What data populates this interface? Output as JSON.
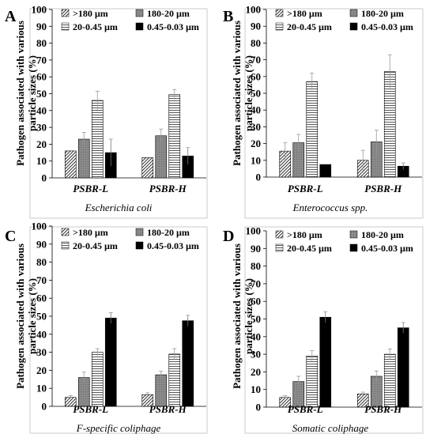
{
  "chart_data": [
    {
      "type": "bar",
      "panel_label": "A",
      "title": "Escherichia coli",
      "ylabel": "Pathogen associated with various particle sizes (%)",
      "ylim": [
        0,
        100
      ],
      "yticks": [
        "0",
        "10",
        "20",
        "30",
        "40",
        "50",
        "60",
        "70",
        "80",
        "90",
        "100"
      ],
      "categories": [
        "PSBR-L",
        "PSBR-H"
      ],
      "legend_position": "top",
      "series": [
        {
          "name": ">180 µm",
          "pattern": "diag",
          "values": [
            16,
            12
          ],
          "errors": [
            0,
            0
          ]
        },
        {
          "name": "180-20 µm",
          "pattern": "gray",
          "values": [
            23,
            25
          ],
          "errors": [
            4,
            4
          ]
        },
        {
          "name": "20-0.45 µm",
          "pattern": "hlines",
          "values": [
            46,
            49.5
          ],
          "errors": [
            5.5,
            3
          ]
        },
        {
          "name": "0.45-0.03 µm",
          "pattern": "black",
          "values": [
            15,
            13
          ],
          "errors": [
            8,
            5
          ]
        }
      ]
    },
    {
      "type": "bar",
      "panel_label": "B",
      "title": "Enterococcus spp.",
      "ylabel": "Pathogen associated with various particle sizes (%)",
      "ylim": [
        0,
        100
      ],
      "yticks": [
        "0",
        "10",
        "20",
        "30",
        "40",
        "50",
        "60",
        "70",
        "80",
        "90",
        "100"
      ],
      "categories": [
        "PSBR-L",
        "PSBR-H"
      ],
      "legend_position": "top",
      "series": [
        {
          "name": ">180 µm",
          "pattern": "diag",
          "values": [
            15.5,
            10
          ],
          "errors": [
            5,
            6
          ]
        },
        {
          "name": "180-20 µm",
          "pattern": "gray",
          "values": [
            20.5,
            21
          ],
          "errors": [
            5,
            7
          ]
        },
        {
          "name": "20-0.45 µm",
          "pattern": "hlines",
          "values": [
            57,
            63
          ],
          "errors": [
            5,
            10
          ]
        },
        {
          "name": "0.45-0.03 µm",
          "pattern": "black",
          "values": [
            7.5,
            6.5
          ],
          "errors": [
            0,
            2
          ]
        }
      ]
    },
    {
      "type": "bar",
      "panel_label": "C",
      "title": "F-specific coliphage",
      "ylabel": "Pathogen associated with various particle sizes (%)",
      "ylim": [
        0,
        100
      ],
      "yticks": [
        "0",
        "10",
        "20",
        "30",
        "40",
        "50",
        "60",
        "70",
        "80",
        "90",
        "100"
      ],
      "categories": [
        "PSBR-L",
        "PSBR-H"
      ],
      "legend_position": "top",
      "series": [
        {
          "name": ">180 µm",
          "pattern": "diag",
          "values": [
            5,
            6.5
          ],
          "errors": [
            1,
            1
          ]
        },
        {
          "name": "180-20 µm",
          "pattern": "gray",
          "values": [
            16,
            17.5
          ],
          "errors": [
            3,
            2
          ]
        },
        {
          "name": "20-0.45 µm",
          "pattern": "hlines",
          "values": [
            30,
            29
          ],
          "errors": [
            2,
            3
          ]
        },
        {
          "name": "0.45-0.03 µm",
          "pattern": "black",
          "values": [
            49,
            47.5
          ],
          "errors": [
            3,
            3
          ]
        }
      ]
    },
    {
      "type": "bar",
      "panel_label": "D",
      "title": "Somatic coliphage",
      "ylabel": "Pathogen associated with various particle sizes (%)",
      "ylim": [
        0,
        100
      ],
      "yticks": [
        "0",
        "10",
        "20",
        "30",
        "40",
        "50",
        "60",
        "70",
        "80",
        "90",
        "100"
      ],
      "categories": [
        "PSBR-L",
        "PSBR-H"
      ],
      "legend_position": "top",
      "series": [
        {
          "name": ">180 µm",
          "pattern": "diag",
          "values": [
            5.5,
            7.5
          ],
          "errors": [
            1,
            1
          ]
        },
        {
          "name": "180-20 µm",
          "pattern": "gray",
          "values": [
            14.5,
            17.5
          ],
          "errors": [
            3,
            3
          ]
        },
        {
          "name": "20-0.45 µm",
          "pattern": "hlines",
          "values": [
            29,
            30
          ],
          "errors": [
            3,
            3
          ]
        },
        {
          "name": "0.45-0.03 µm",
          "pattern": "black",
          "values": [
            51,
            45
          ],
          "errors": [
            3,
            3
          ]
        }
      ]
    }
  ]
}
